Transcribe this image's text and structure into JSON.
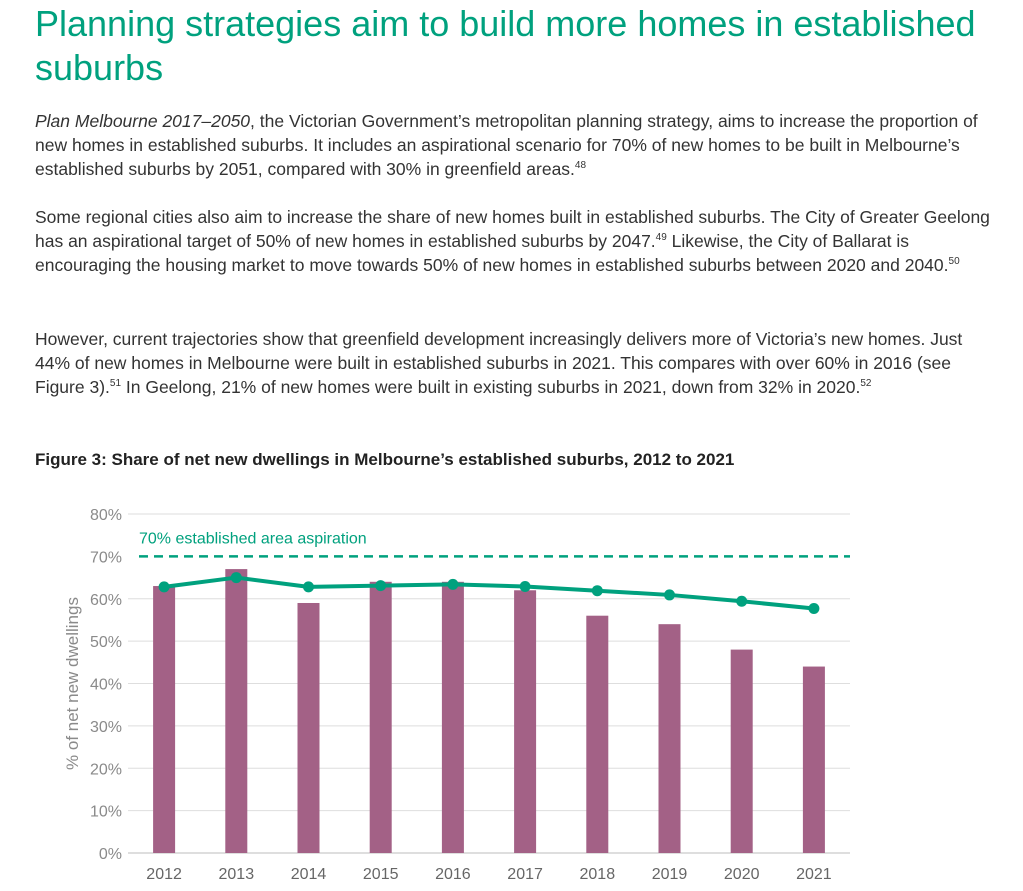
{
  "heading": "Planning strategies aim to build more homes in established suburbs",
  "para1": {
    "italic": "Plan Melbourne 2017–2050",
    "text": ", the Victorian Government’s metropolitan planning strategy, aims to increase the proportion of new homes in established suburbs. It includes an aspirational scenario for 70% of new homes to be built in Melbourne’s established suburbs by 2051, compared with 30% in greenfield areas.",
    "note": "48"
  },
  "para2": {
    "text1": "Some regional cities also aim to increase the share of new homes built in established suburbs. The City of Greater Geelong has an aspirational target of 50% of new homes in established suburbs by 2047.",
    "note1": "49",
    "text2": " Likewise, the City of Ballarat is encouraging the housing market to move towards 50% of new homes in established suburbs between 2020 and 2040.",
    "note2": "50"
  },
  "para3": {
    "text1": "However, current trajectories show that greenfield development increasingly delivers more of Victoria’s new homes. Just 44% of new homes in Melbourne were built in established suburbs in 2021. This compares with over 60% in 2016 (see Figure 3).",
    "note1": "51",
    "text2": " In Geelong, 21% of new homes were built in existing suburbs in 2021, down from 32% in 2020.",
    "note2": "52"
  },
  "figure_title": "Figure 3: Share of net new dwellings in Melbourne’s established suburbs, 2012 to 2021",
  "chart_data": {
    "type": "bar",
    "categories": [
      "2012",
      "2013",
      "2014",
      "2015",
      "2016",
      "2017",
      "2018",
      "2019",
      "2020",
      "2021"
    ],
    "series": [
      {
        "type": "bar",
        "color": "#a36186",
        "values": [
          63,
          67,
          59,
          64,
          64,
          62,
          56,
          54,
          48,
          44
        ]
      },
      {
        "type": "line",
        "color": "#00a17e",
        "values": [
          62.8,
          65,
          62.8,
          63.1,
          63.4,
          62.9,
          61.9,
          60.9,
          59.4,
          57.7
        ]
      }
    ],
    "reference_line": {
      "value": 70,
      "label": "70% established area aspiration",
      "style": "dashed",
      "color": "#00a17e"
    },
    "ylabel": "% of net new dwellings",
    "xlabel": "",
    "ylim": [
      0,
      80
    ],
    "yticks": [
      0,
      10,
      20,
      30,
      40,
      50,
      60,
      70,
      80
    ],
    "ytick_suffix": "%",
    "grid": true,
    "legend": "none"
  }
}
